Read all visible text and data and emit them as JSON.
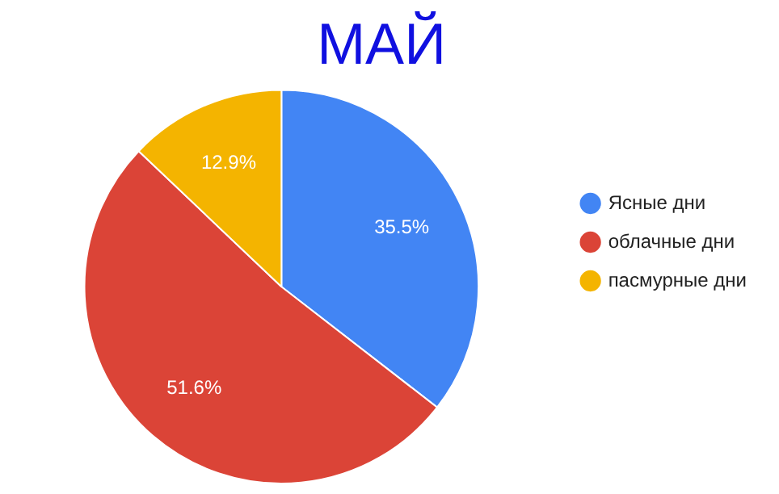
{
  "chart_data": {
    "type": "pie",
    "title": "МАЙ",
    "categories": [
      "Ясные дни",
      "облачные дни",
      "пасмурные дни"
    ],
    "values": [
      35.5,
      51.6,
      12.9
    ],
    "colors": [
      "#4285f4",
      "#db4437",
      "#f4b400"
    ],
    "value_labels": [
      "35.5%",
      "51.6%",
      "12.9%"
    ],
    "legend": "right"
  }
}
